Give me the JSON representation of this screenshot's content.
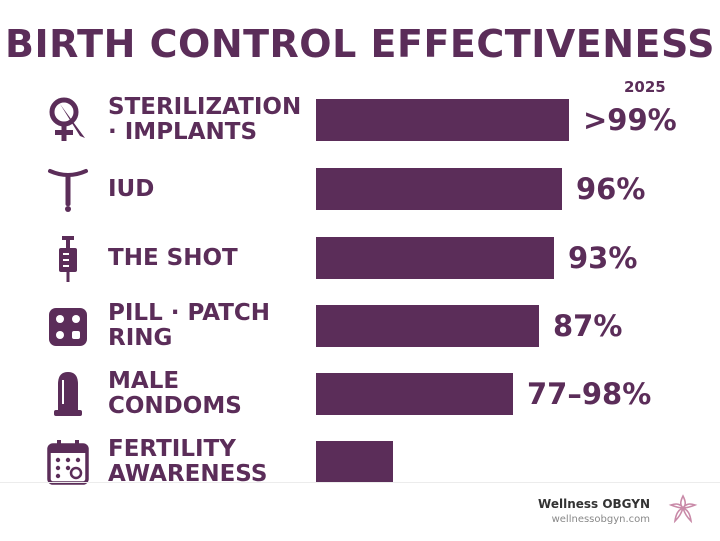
{
  "chart_data": {
    "type": "bar",
    "orientation": "horizontal",
    "title": "BIRTH CONTROL EFFECTIVENESS",
    "subtitle": "2025",
    "categories": [
      [
        "STERILIZATION",
        "· IMPLANTS"
      ],
      [
        "IUD"
      ],
      [
        "THE SHOT"
      ],
      [
        "PILL · PATCH",
        "RING"
      ],
      [
        "MALE",
        "CONDOMS"
      ],
      [
        "FERTILITY",
        "AWARENESS"
      ]
    ],
    "value_labels": [
      ">99%",
      "96%",
      "93%",
      "87%",
      "77–98%",
      ""
    ],
    "values": [
      99,
      96,
      93,
      87,
      77,
      30
    ],
    "icons": [
      "female-symbol-scalpel-icon",
      "iud-icon",
      "syringe-icon",
      "pill-pack-icon",
      "condom-icon",
      "calendar-icon"
    ],
    "xlim": [
      0,
      100
    ],
    "grid": false,
    "legend": "none",
    "bar_color": "#5b2d59"
  },
  "footer": {
    "brand_name": "Wellness OBGYN",
    "brand_url": "wellnessobgyn.com"
  },
  "colors": {
    "primary": "#5b2d59",
    "logo_pink": "#c98aa8"
  }
}
